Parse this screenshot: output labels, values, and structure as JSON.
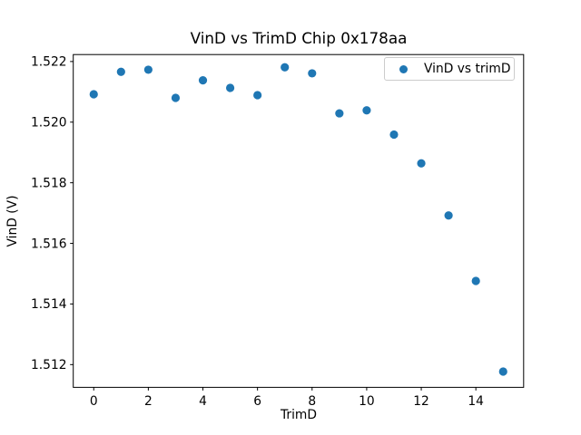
{
  "chart_data": {
    "type": "scatter",
    "title": "VinD vs TrimD Chip 0x178aa",
    "xlabel": "TrimD",
    "ylabel": "VinD (V)",
    "grid": false,
    "background": "#ffffff",
    "axis_color": "#000000",
    "xlim": [
      -0.75,
      15.75
    ],
    "ylim": [
      1.51125,
      1.52223
    ],
    "xticks": [
      "0",
      "2",
      "4",
      "6",
      "8",
      "10",
      "12",
      "14"
    ],
    "yticks": [
      "1.512",
      "1.514",
      "1.516",
      "1.518",
      "1.520",
      "1.522"
    ],
    "legend": {
      "position": "upper right",
      "label": "VinD vs trimD"
    },
    "series": [
      {
        "name": "VinD vs trimD",
        "marker": "circle",
        "color": "#1f77b4",
        "x": [
          0,
          1,
          2,
          3,
          4,
          5,
          6,
          7,
          8,
          9,
          10,
          11,
          12,
          13,
          14,
          15
        ],
        "y": [
          1.52092,
          1.52166,
          1.52173,
          1.5208,
          1.52138,
          1.52113,
          1.52089,
          1.52181,
          1.52161,
          1.52029,
          1.52039,
          1.51959,
          1.51864,
          1.51692,
          1.51476,
          1.51177
        ]
      }
    ]
  }
}
